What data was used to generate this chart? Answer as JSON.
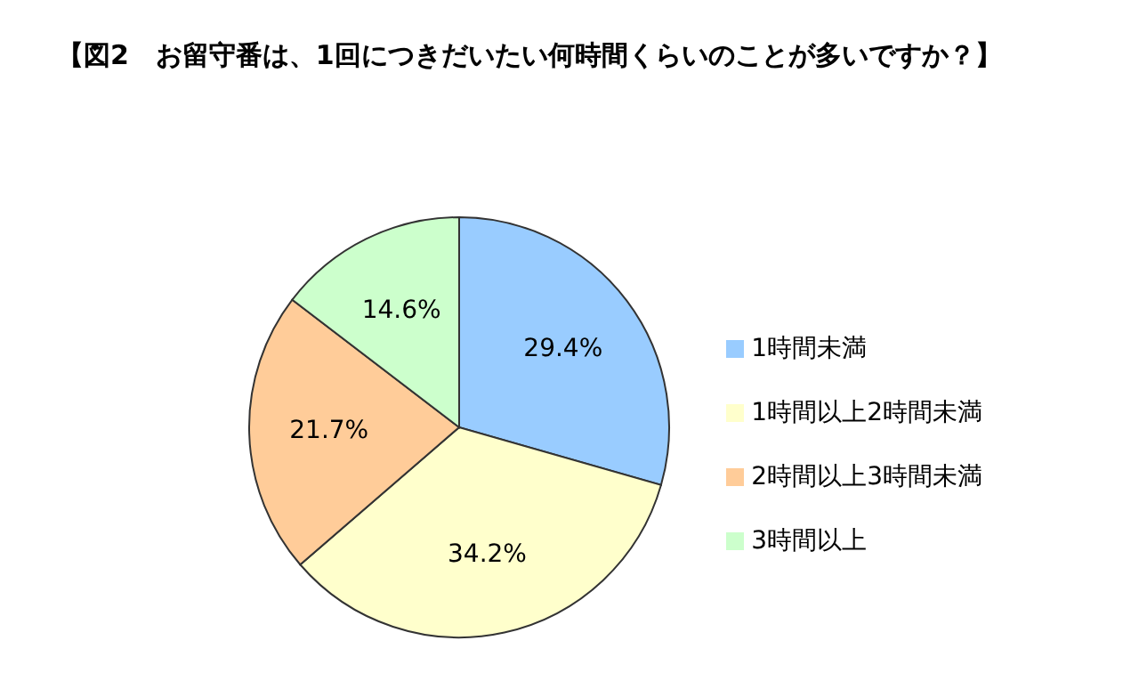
{
  "chart_data": {
    "type": "pie",
    "title": "【図2　お留守番は、1回につきだいたい何時間くらいのことが多いですか？】",
    "categories": [
      "1時間未満",
      "1時間以上2時間未満",
      "2時間以上3時間未満",
      "3時間以上"
    ],
    "values": [
      29.4,
      34.2,
      21.7,
      14.6
    ],
    "value_labels": [
      "29.4%",
      "34.2%",
      "21.7%",
      "14.6%"
    ],
    "colors": [
      "#99ccff",
      "#ffffcc",
      "#ffcc99",
      "#ccffcc"
    ],
    "legend": "right"
  }
}
